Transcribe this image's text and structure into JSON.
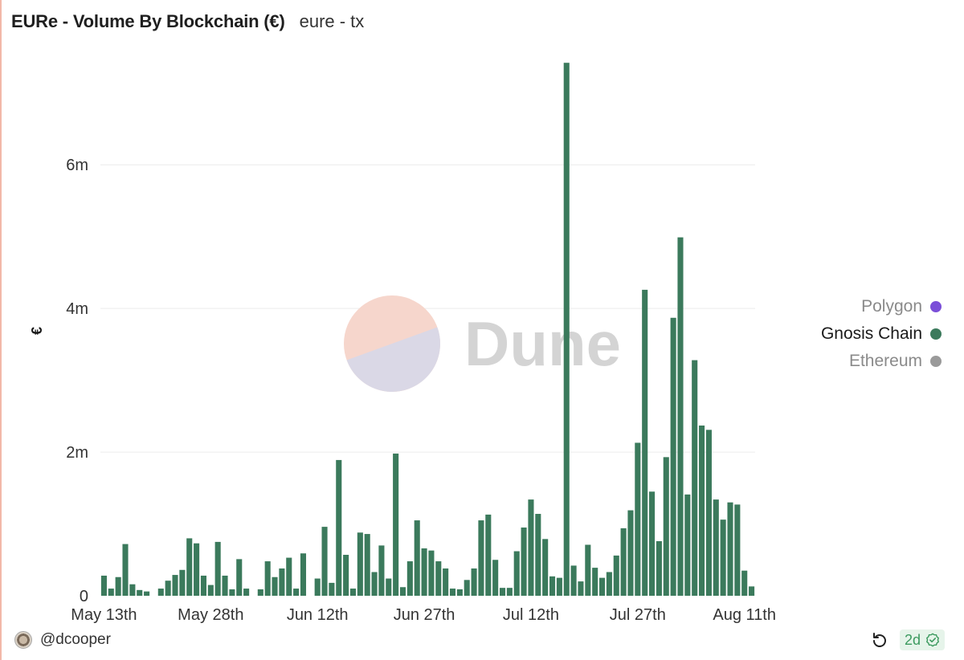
{
  "header": {
    "title": "EURe - Volume By Blockchain (€)",
    "subtitle": "eure - tx"
  },
  "watermark": {
    "text": "Dune"
  },
  "legend": [
    {
      "label": "Polygon",
      "color": "#7b4fd8",
      "text_color": "#8a8a8a"
    },
    {
      "label": "Gnosis Chain",
      "color": "#3b7a5c",
      "text_color": "#1a1a1a"
    },
    {
      "label": "Ethereum",
      "color": "#9a9a9a",
      "text_color": "#8a8a8a"
    }
  ],
  "footer": {
    "author": "@dcooper",
    "age": "2d",
    "icons": [
      "avatar",
      "refresh-icon",
      "check-circle-icon"
    ]
  },
  "chart_data": {
    "type": "bar",
    "title": "EURe - Volume By Blockchain (€)",
    "ylabel": "€",
    "xlabel": "",
    "ylim": [
      0,
      7400000
    ],
    "yticks": [
      0,
      2000000,
      4000000,
      6000000
    ],
    "ytick_labels": [
      "0",
      "2m",
      "4m",
      "6m"
    ],
    "xtick_labels": [
      "May 13th",
      "May 28th",
      "Jun 12th",
      "Jun 27th",
      "Jul 12th",
      "Jul 27th",
      "Aug 11th"
    ],
    "xtick_day_index": [
      0,
      15,
      30,
      45,
      60,
      75,
      90
    ],
    "grid": true,
    "legend_position": "right",
    "series": [
      {
        "name": "Gnosis Chain",
        "color": "#3b7a5c",
        "values": [
          280000,
          100000,
          260000,
          720000,
          160000,
          80000,
          60000,
          0,
          100000,
          210000,
          290000,
          360000,
          800000,
          730000,
          280000,
          150000,
          750000,
          280000,
          90000,
          510000,
          100000,
          0,
          90000,
          480000,
          260000,
          380000,
          530000,
          100000,
          590000,
          0,
          240000,
          960000,
          180000,
          1890000,
          570000,
          100000,
          880000,
          860000,
          330000,
          700000,
          240000,
          1980000,
          120000,
          480000,
          1050000,
          660000,
          630000,
          480000,
          380000,
          100000,
          90000,
          220000,
          380000,
          1050000,
          1130000,
          500000,
          110000,
          110000,
          620000,
          950000,
          1340000,
          1140000,
          790000,
          270000,
          250000,
          7420000,
          420000,
          200000,
          710000,
          390000,
          250000,
          330000,
          560000,
          940000,
          1190000,
          2130000,
          4260000,
          1450000,
          760000,
          1930000,
          3870000,
          4990000,
          1410000,
          3280000,
          2370000,
          2310000,
          1340000,
          1060000,
          1300000,
          1270000,
          350000,
          130000
        ]
      },
      {
        "name": "Polygon",
        "color": "#7b4fd8",
        "values": []
      },
      {
        "name": "Ethereum",
        "color": "#9a9a9a",
        "values": []
      }
    ]
  }
}
